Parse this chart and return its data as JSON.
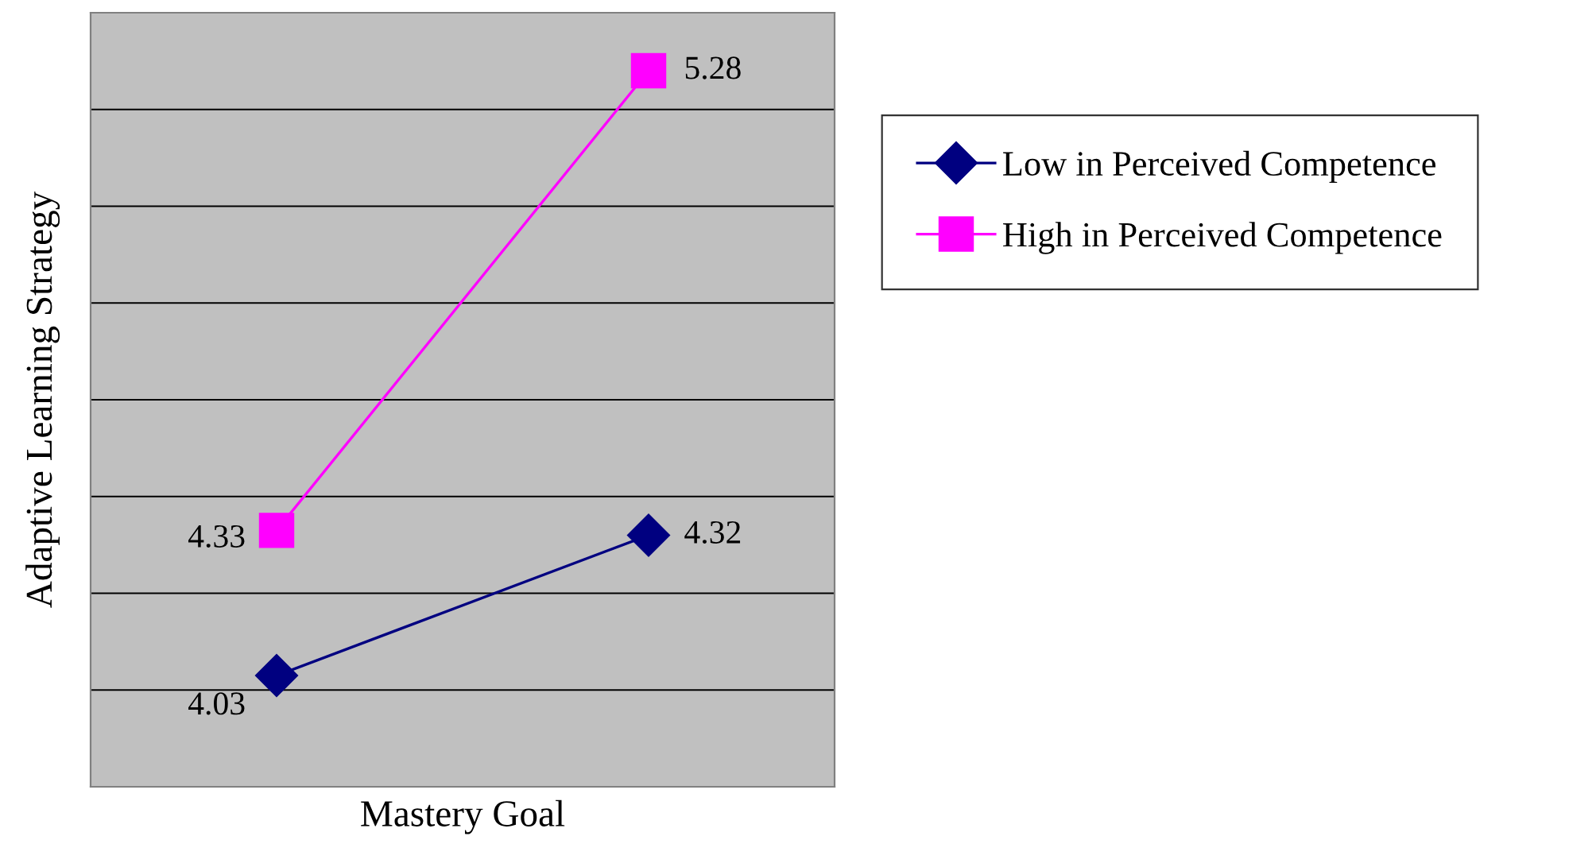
{
  "chart_data": {
    "type": "line",
    "xlabel": "Mastery Goal",
    "ylabel": "Adaptive Learning Strategy",
    "categories": [
      null,
      null
    ],
    "series": [
      {
        "name": "Low in Perceived Competence",
        "color": "#000080",
        "marker": "diamond",
        "values": [
          4.03,
          4.32
        ]
      },
      {
        "name": "High in Perceived Competence",
        "color": "#ff00ff",
        "marker": "square",
        "values": [
          4.33,
          5.28
        ]
      }
    ],
    "ylim": [
      3.8,
      5.4
    ],
    "yticks": [
      {
        "value": 4.0,
        "label": null
      },
      {
        "value": 4.2,
        "label": null
      },
      {
        "value": 4.4,
        "label": null
      },
      {
        "value": 4.6,
        "label": null
      },
      {
        "value": 4.8,
        "label": null
      },
      {
        "value": 5.0,
        "label": null
      },
      {
        "value": 5.2,
        "label": null
      }
    ],
    "grid": "y",
    "legend": "right",
    "tick_labels": false,
    "data_labels": true,
    "line_style": "solid"
  }
}
